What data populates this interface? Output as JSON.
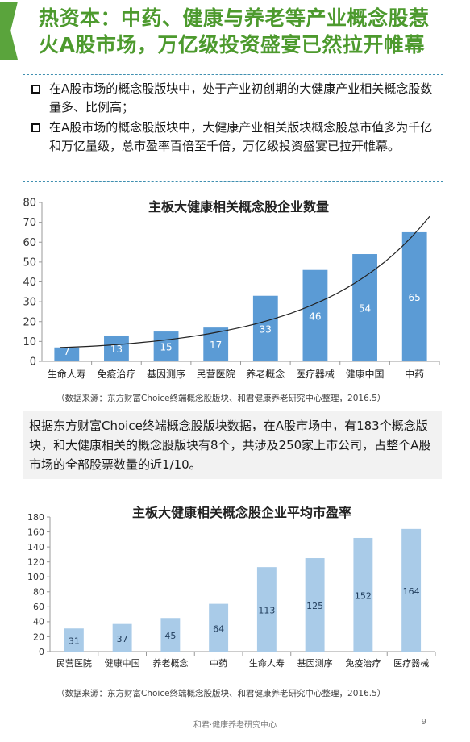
{
  "header": {
    "title_line1": "热资本：中药、健康与养老等产业概念股惹",
    "title_line2": "火A股市场，万亿级投资盛宴已然拉开帷幕",
    "accent_color": "#5aa43c"
  },
  "bullets": [
    "在A股市场的概念股版块中，处于产业初创期的大健康产业相关概念股数量多、比例高；",
    "在A股市场的概念股版块中，大健康产业相关版块概念股总市值多为千亿和万亿量级，总市盈率百倍至千倍，万亿级投资盛宴已拉开帷幕。"
  ],
  "info_text": "根据东方财富Choice终端概念股版块数据，在A股市场中，有183个概念版块，和大健康相关的概念股版块有8个，共涉及250家上市公司，占整个A股市场的全部股票数量的近1/10。",
  "footer": {
    "org": "和君·健康养老研究中心",
    "page": "9"
  },
  "chart_data": [
    {
      "type": "bar",
      "title": "主板大健康相关概念股企业数量",
      "categories": [
        "生命人寿",
        "免疫治疗",
        "基因测序",
        "民营医院",
        "养老概念",
        "医疗器械",
        "健康中国",
        "中药"
      ],
      "values": [
        7,
        13,
        15,
        17,
        33,
        46,
        54,
        65
      ],
      "ylim": [
        0,
        80
      ],
      "yticks": [
        "0",
        "10",
        "20",
        "30",
        "40",
        "50",
        "60",
        "70",
        "80"
      ],
      "trendline": true,
      "grid": false,
      "bar_color": "#5b9bd5",
      "source": "（数据来源：东方财富Choice终端概念股版块、和君健康养老研究中心整理，2016.5）"
    },
    {
      "type": "bar",
      "title": "主板大健康相关概念股企业平均市盈率",
      "categories": [
        "民营医院",
        "健康中国",
        "养老概念",
        "中药",
        "生命人寿",
        "基因测序",
        "免疫治疗",
        "医疗器械"
      ],
      "values": [
        31,
        37,
        45,
        64,
        113,
        125,
        152,
        164
      ],
      "ylim": [
        0,
        180
      ],
      "yticks": [
        "0",
        "20",
        "40",
        "60",
        "80",
        "100",
        "120",
        "140",
        "160",
        "180"
      ],
      "grid": false,
      "bar_color": "#a9cbe8",
      "source": "（数据来源：东方财富Choice终端概念股版块、和君健康养老研究中心整理，2016.5）"
    }
  ]
}
